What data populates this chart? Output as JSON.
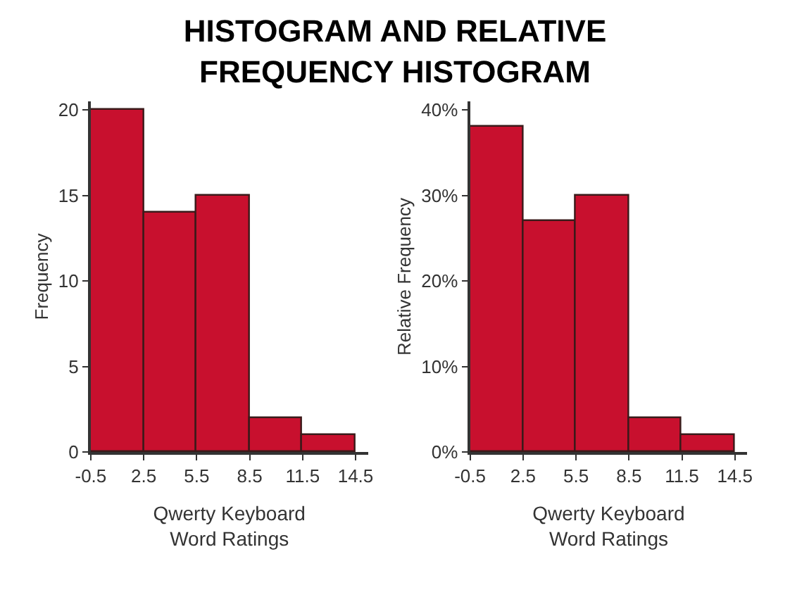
{
  "chart_data": [
    {
      "type": "histogram",
      "title": "HISTOGRAM AND RELATIVE FREQUENCY HISTOGRAM",
      "xlabel": "Qwerty Keyboard Word Ratings",
      "ylabel": "Frequency",
      "bins": [
        -0.5,
        2.5,
        5.5,
        8.5,
        11.5,
        14.5
      ],
      "values": [
        20,
        14,
        15,
        2,
        1
      ],
      "color": "#c8102e",
      "xlim": [
        -0.5,
        15.2
      ],
      "xticks": [
        -0.5,
        2.5,
        5.5,
        8.5,
        11.5,
        14.5
      ],
      "ylim": [
        0,
        20.5
      ],
      "yticks": [
        0,
        5,
        10,
        15,
        20
      ]
    },
    {
      "type": "histogram",
      "xlabel": "Qwerty Keyboard Word Ratings",
      "ylabel": "Relative Frequency",
      "bins": [
        -0.5,
        2.5,
        5.5,
        8.5,
        11.5,
        14.5
      ],
      "values": [
        38,
        27,
        30,
        4,
        2
      ],
      "color": "#c8102e",
      "xlim": [
        -0.5,
        15.2
      ],
      "xticks": [
        -0.5,
        2.5,
        5.5,
        8.5,
        11.5,
        14.5
      ],
      "ylim": [
        0,
        41
      ],
      "yticks": [
        {
          "value": 0,
          "label": "0%"
        },
        {
          "value": 10,
          "label": "10%"
        },
        {
          "value": 20,
          "label": "20%"
        },
        {
          "value": 30,
          "label": "30%"
        },
        {
          "value": 40,
          "label": "40%"
        }
      ]
    }
  ]
}
